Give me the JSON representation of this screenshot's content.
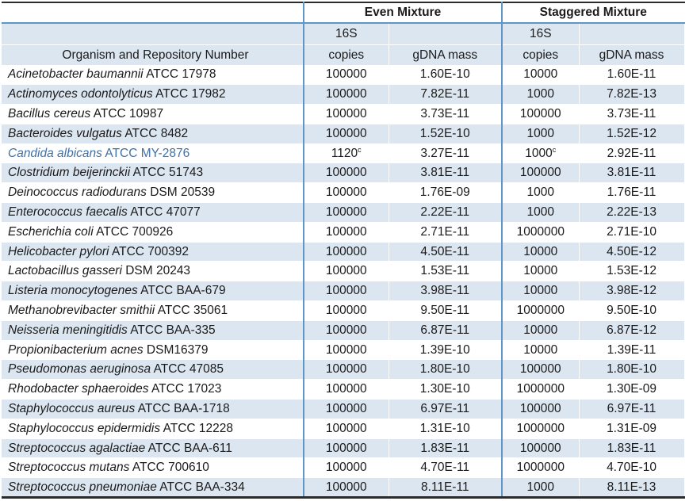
{
  "table": {
    "groups": [
      {
        "label": "Even Mixture"
      },
      {
        "label": "Staggered Mixture"
      }
    ],
    "columns": {
      "organism": "Organism and Repository Number",
      "s16_top": "16S",
      "s16_bottom": "copies",
      "gdna": "gDNA mass"
    },
    "rows": [
      {
        "name": "Acinetobacter baumannii",
        "accession": "ATCC 17978",
        "highlighted": false,
        "even": {
          "copies": "100000",
          "copies_sup": "",
          "gdna": "1.60E-10"
        },
        "staggered": {
          "copies": "10000",
          "copies_sup": "",
          "gdna": "1.60E-11"
        }
      },
      {
        "name": "Actinomyces odontolyticus",
        "accession": "ATCC 17982",
        "highlighted": false,
        "even": {
          "copies": "100000",
          "copies_sup": "",
          "gdna": "7.82E-11"
        },
        "staggered": {
          "copies": "1000",
          "copies_sup": "",
          "gdna": "7.82E-13"
        }
      },
      {
        "name": "Bacillus cereus",
        "accession": "ATCC 10987",
        "highlighted": false,
        "even": {
          "copies": "100000",
          "copies_sup": "",
          "gdna": "3.73E-11"
        },
        "staggered": {
          "copies": "100000",
          "copies_sup": "",
          "gdna": "3.73E-11"
        }
      },
      {
        "name": "Bacteroides vulgatus",
        "accession": "ATCC 8482",
        "highlighted": false,
        "even": {
          "copies": "100000",
          "copies_sup": "",
          "gdna": "1.52E-10"
        },
        "staggered": {
          "copies": "1000",
          "copies_sup": "",
          "gdna": "1.52E-12"
        }
      },
      {
        "name": "Candida albicans",
        "accession": "ATCC MY-2876",
        "highlighted": true,
        "even": {
          "copies": "1120",
          "copies_sup": "c",
          "gdna": "3.27E-11"
        },
        "staggered": {
          "copies": "1000",
          "copies_sup": "c",
          "gdna": "2.92E-11"
        }
      },
      {
        "name": "Clostridium beijerinckii",
        "accession": "ATCC 51743",
        "highlighted": false,
        "even": {
          "copies": "100000",
          "copies_sup": "",
          "gdna": "3.81E-11"
        },
        "staggered": {
          "copies": "100000",
          "copies_sup": "",
          "gdna": "3.81E-11"
        }
      },
      {
        "name": "Deinococcus radiodurans",
        "accession": "DSM 20539",
        "highlighted": false,
        "even": {
          "copies": "100000",
          "copies_sup": "",
          "gdna": "1.76E-09"
        },
        "staggered": {
          "copies": "1000",
          "copies_sup": "",
          "gdna": "1.76E-11"
        }
      },
      {
        "name": "Enterococcus faecalis",
        "accession": "ATCC 47077",
        "highlighted": false,
        "even": {
          "copies": "100000",
          "copies_sup": "",
          "gdna": "2.22E-11"
        },
        "staggered": {
          "copies": "1000",
          "copies_sup": "",
          "gdna": "2.22E-13"
        }
      },
      {
        "name": "Escherichia coli",
        "accession": "ATCC 700926",
        "highlighted": false,
        "even": {
          "copies": "100000",
          "copies_sup": "",
          "gdna": "2.71E-11"
        },
        "staggered": {
          "copies": "1000000",
          "copies_sup": "",
          "gdna": "2.71E-10"
        }
      },
      {
        "name": "Helicobacter pylori",
        "accession": "ATCC 700392",
        "highlighted": false,
        "even": {
          "copies": "100000",
          "copies_sup": "",
          "gdna": "4.50E-11"
        },
        "staggered": {
          "copies": "10000",
          "copies_sup": "",
          "gdna": "4.50E-12"
        }
      },
      {
        "name": "Lactobacillus gasseri",
        "accession": "DSM 20243",
        "highlighted": false,
        "even": {
          "copies": "100000",
          "copies_sup": "",
          "gdna": "1.53E-11"
        },
        "staggered": {
          "copies": "10000",
          "copies_sup": "",
          "gdna": "1.53E-12"
        }
      },
      {
        "name": "Listeria monocytogenes",
        "accession": "ATCC BAA-679",
        "highlighted": false,
        "even": {
          "copies": "100000",
          "copies_sup": "",
          "gdna": "3.98E-11"
        },
        "staggered": {
          "copies": "10000",
          "copies_sup": "",
          "gdna": "3.98E-12"
        }
      },
      {
        "name": "Methanobrevibacter smithii",
        "accession": "ATCC 35061",
        "highlighted": false,
        "even": {
          "copies": "100000",
          "copies_sup": "",
          "gdna": "9.50E-11"
        },
        "staggered": {
          "copies": "1000000",
          "copies_sup": "",
          "gdna": "9.50E-10"
        }
      },
      {
        "name": "Neisseria meningitidis",
        "accession": "ATCC BAA-335",
        "highlighted": false,
        "even": {
          "copies": "100000",
          "copies_sup": "",
          "gdna": "6.87E-11"
        },
        "staggered": {
          "copies": "10000",
          "copies_sup": "",
          "gdna": "6.87E-12"
        }
      },
      {
        "name": "Propionibacterium acnes",
        "accession": "DSM16379",
        "highlighted": false,
        "even": {
          "copies": "100000",
          "copies_sup": "",
          "gdna": "1.39E-10"
        },
        "staggered": {
          "copies": "10000",
          "copies_sup": "",
          "gdna": "1.39E-11"
        }
      },
      {
        "name": "Pseudomonas aeruginosa",
        "accession": "ATCC 47085",
        "highlighted": false,
        "even": {
          "copies": "100000",
          "copies_sup": "",
          "gdna": "1.80E-10"
        },
        "staggered": {
          "copies": "100000",
          "copies_sup": "",
          "gdna": "1.80E-10"
        }
      },
      {
        "name": "Rhodobacter sphaeroides",
        "accession": "ATCC 17023",
        "highlighted": false,
        "even": {
          "copies": "100000",
          "copies_sup": "",
          "gdna": "1.30E-10"
        },
        "staggered": {
          "copies": "1000000",
          "copies_sup": "",
          "gdna": "1.30E-09"
        }
      },
      {
        "name": "Staphylococcus aureus",
        "accession": "ATCC BAA-1718",
        "highlighted": false,
        "even": {
          "copies": "100000",
          "copies_sup": "",
          "gdna": "6.97E-11"
        },
        "staggered": {
          "copies": "100000",
          "copies_sup": "",
          "gdna": "6.97E-11"
        }
      },
      {
        "name": "Staphylococcus epidermidis",
        "accession": "ATCC 12228",
        "highlighted": false,
        "even": {
          "copies": "100000",
          "copies_sup": "",
          "gdna": "1.31E-10"
        },
        "staggered": {
          "copies": "1000000",
          "copies_sup": "",
          "gdna": "1.31E-09"
        }
      },
      {
        "name": "Streptococcus agalactiae",
        "accession": "ATCC BAA-611",
        "highlighted": false,
        "even": {
          "copies": "100000",
          "copies_sup": "",
          "gdna": "1.83E-11"
        },
        "staggered": {
          "copies": "100000",
          "copies_sup": "",
          "gdna": "1.83E-11"
        }
      },
      {
        "name": "Streptococcus mutans",
        "accession": "ATCC 700610",
        "highlighted": false,
        "even": {
          "copies": "100000",
          "copies_sup": "",
          "gdna": "4.70E-11"
        },
        "staggered": {
          "copies": "1000000",
          "copies_sup": "",
          "gdna": "4.70E-10"
        }
      },
      {
        "name": "Streptococcus pneumoniae",
        "accession": "ATCC BAA-334",
        "highlighted": false,
        "even": {
          "copies": "100000",
          "copies_sup": "",
          "gdna": "8.11E-11"
        },
        "staggered": {
          "copies": "1000",
          "copies_sup": "",
          "gdna": "8.11E-13"
        }
      }
    ]
  },
  "colors": {
    "row_stripe": "#DCE6F1",
    "group_border_blue": "#5E96C8",
    "outer_border_dark": "#2B2B2B",
    "highlight_organism_text": "#3F71A9",
    "body_text": "#1A1A1A"
  }
}
